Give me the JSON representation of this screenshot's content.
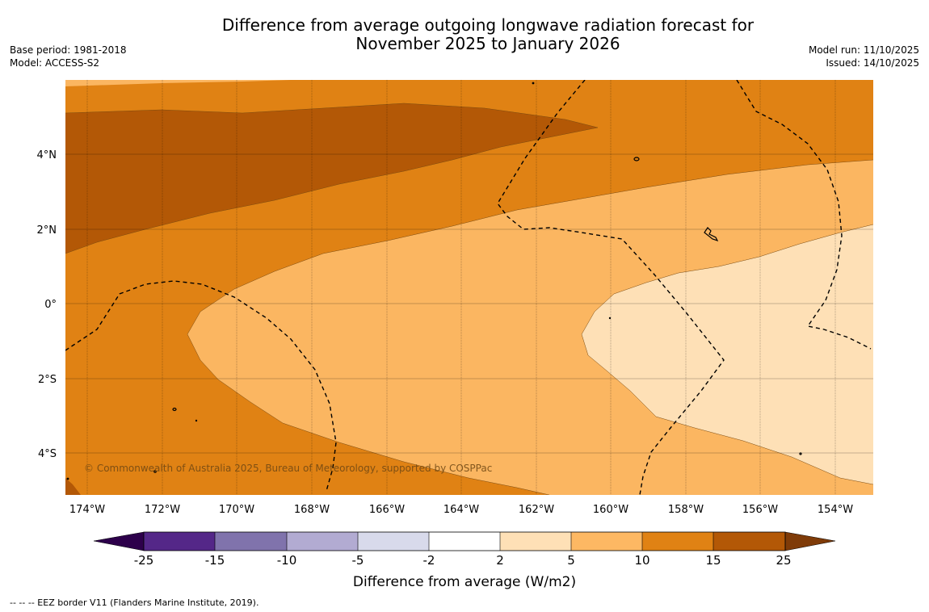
{
  "title": {
    "line1": "Difference from average outgoing longwave radiation forecast for",
    "line2": "November 2025 to January 2026"
  },
  "meta_left": {
    "base_period": "Base period: 1981-2018",
    "model": "Model: ACCESS-S2"
  },
  "meta_right": {
    "model_run": "Model run: 11/10/2025",
    "issued": "Issued: 14/10/2025"
  },
  "map": {
    "longitude_labels": [
      "174°W",
      "172°W",
      "170°W",
      "168°W",
      "166°W",
      "164°W",
      "162°W",
      "160°W",
      "158°W",
      "156°W",
      "154°W"
    ],
    "latitude_labels": [
      "4°N",
      "2°N",
      "0°",
      "2°S",
      "4°S"
    ],
    "copyright": "© Commonwealth of Australia 2025, Bureau of Meteorology, supported by COSPPac",
    "colors": {
      "c5_10": "#fbb661",
      "c10_15": "#e08214",
      "c15_25": "#b35806",
      "c2_5": "#fee0b6"
    }
  },
  "colorbar": {
    "title": "Difference from average (W/m2)",
    "tick_labels": [
      "-25",
      "-15",
      "-10",
      "-5",
      "-2",
      "2",
      "5",
      "10",
      "15",
      "25"
    ],
    "colors": [
      "#542788",
      "#8073ac",
      "#b2abd2",
      "#d8daeb",
      "#ffffff",
      "#fee0b6",
      "#fdb863",
      "#e08214",
      "#b35806"
    ],
    "under_color": "#2d004b",
    "over_color": "#7f3b08"
  },
  "footnote": "--  --  -- EEZ border V11 (Flanders Marine Institute, 2019)."
}
